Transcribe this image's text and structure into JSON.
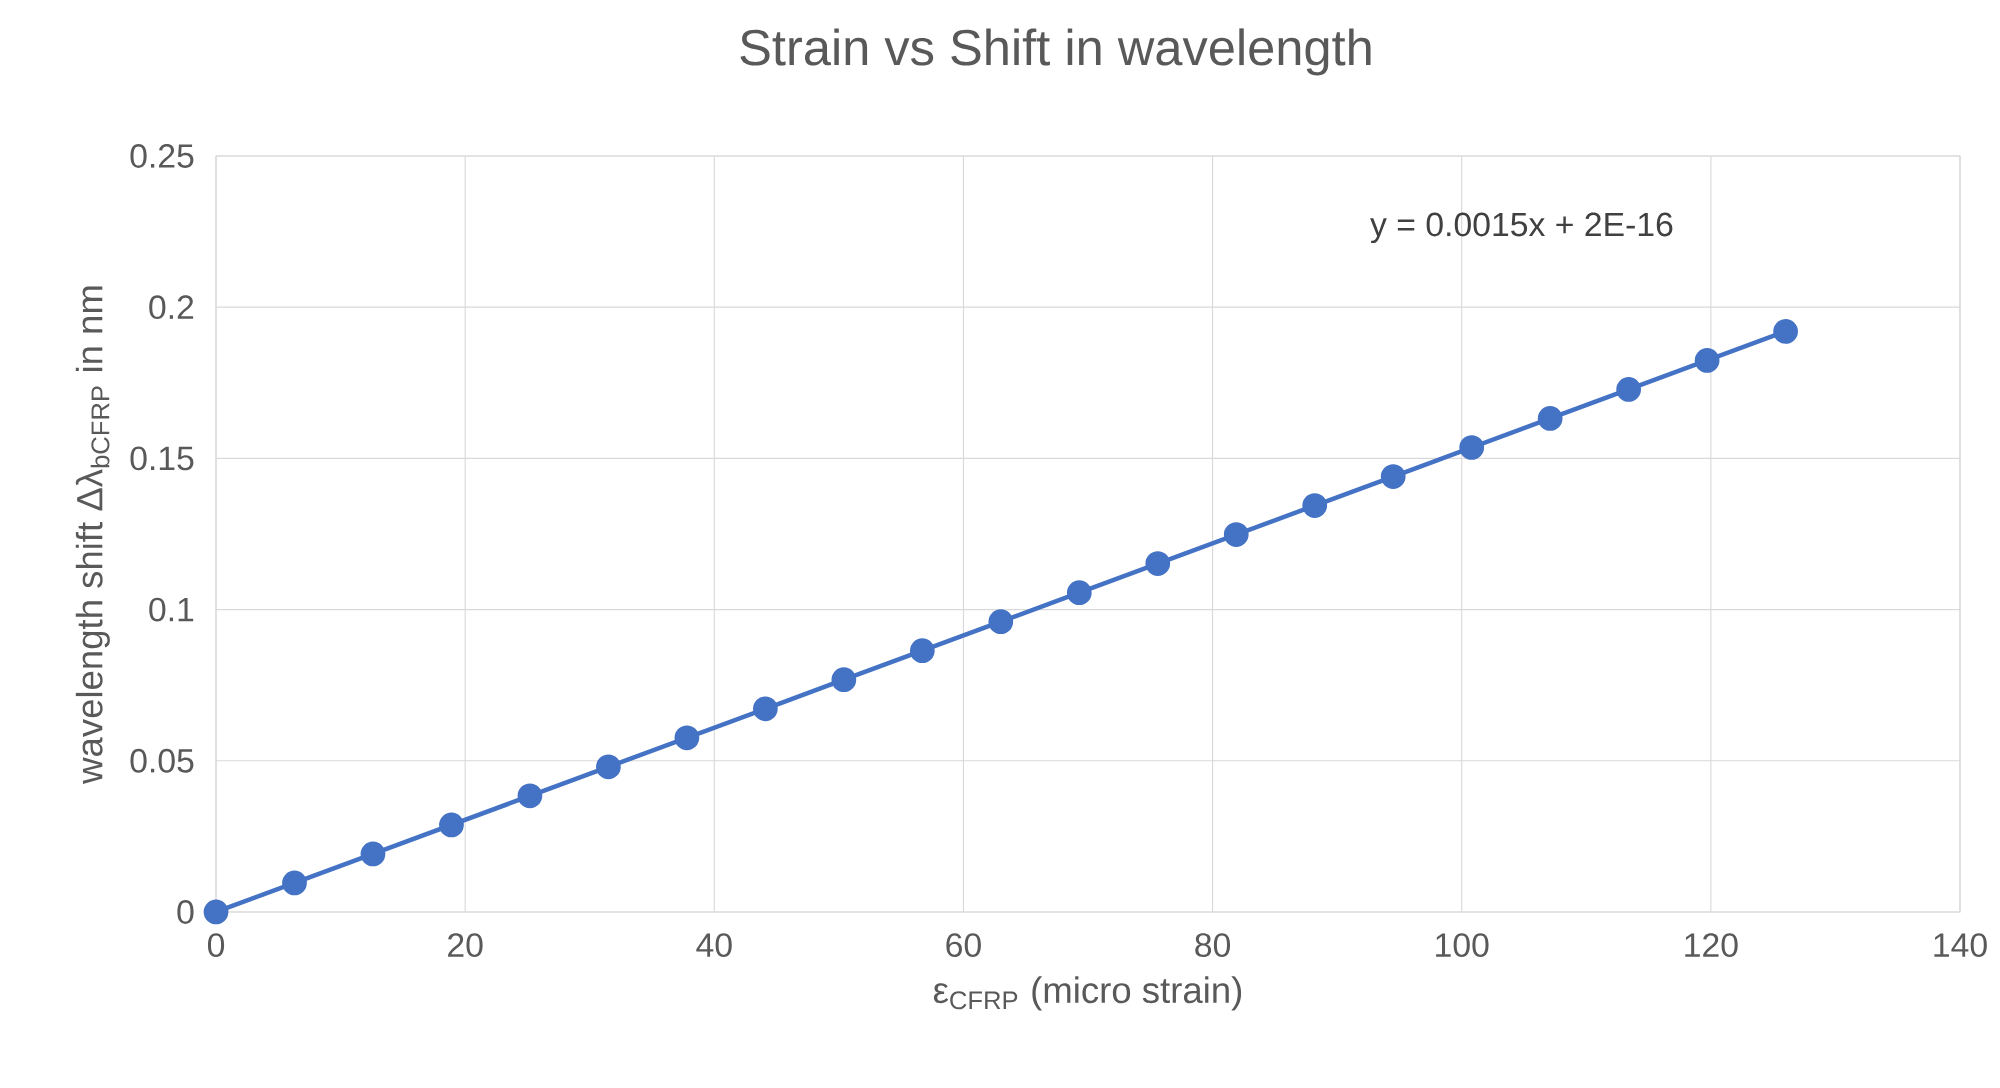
{
  "chart_data": {
    "type": "line",
    "title": "Strain vs Shift in wavelength",
    "xlabel": "ε$_{CFRP}$ (micro strain)",
    "ylabel": "wavelength shift Δλ$_{bCFRP}$ in nm",
    "annotations": [
      "y = 0.0015x + 2E-16"
    ],
    "x": [
      0,
      6.3,
      12.6,
      18.9,
      25.2,
      31.5,
      37.8,
      44.1,
      50.4,
      56.7,
      63,
      69.3,
      75.6,
      81.9,
      88.2,
      94.5,
      100.8,
      107.1,
      113.4,
      119.7,
      126
    ],
    "series": [
      {
        "color": "#4472c4",
        "values": [
          0,
          0.0096,
          0.0192,
          0.0288,
          0.0384,
          0.048,
          0.0576,
          0.0672,
          0.0768,
          0.0864,
          0.096,
          0.1056,
          0.1152,
          0.1248,
          0.1344,
          0.144,
          0.1536,
          0.1632,
          0.1728,
          0.1824,
          0.192
        ]
      }
    ],
    "xlim": [
      0,
      140
    ],
    "xticks": [
      0,
      20,
      40,
      60,
      80,
      100,
      120,
      140
    ],
    "ylim": [
      0,
      0.25
    ],
    "yticks": [
      0,
      0.05,
      0.1,
      0.15,
      0.2,
      0.25
    ],
    "grid": true,
    "marker": "circle",
    "line_style": "solid"
  }
}
